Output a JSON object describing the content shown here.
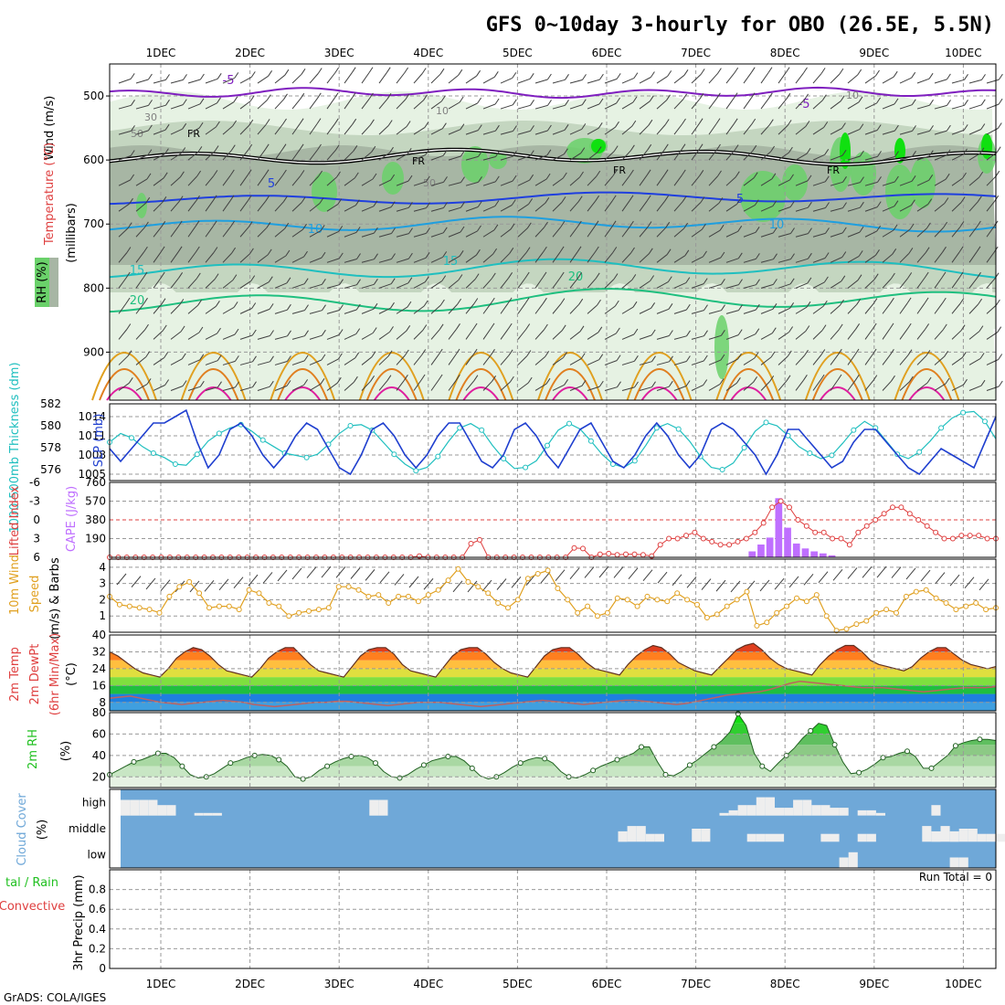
{
  "title": "GFS 0~10day 3-hourly for OBO (26.5E, 5.5N)",
  "footer": "GrADS: COLA/IGES",
  "run_total_label": "Run Total = 0",
  "days": [
    "1DEC",
    "2DEC",
    "3DEC",
    "4DEC",
    "5DEC",
    "6DEC",
    "7DEC",
    "8DEC",
    "9DEC",
    "10DEC"
  ],
  "colors": {
    "rh_light": "#e6f2e3",
    "rh_mid": "#c4d6c0",
    "rh_gray": "#a7b6a4",
    "rh_green": "#6ad16a",
    "rh_bright": "#10e010",
    "temp_purple": "#7f1fbf",
    "temp_blue": "#1f3fdf",
    "temp_sky": "#1f9fdf",
    "temp_cyan": "#1fbfbf",
    "temp_teal": "#1fbf7f",
    "temp_orange": "#e0a020",
    "temp_darkorange": "#e07f20",
    "temp_magenta": "#df1f9f",
    "slp_line": "#1f3fcf",
    "thick_line": "#1fbfbf",
    "lifted_index": "#df3f3f",
    "cape_bar": "#bf6fff",
    "wind_speed": "#e0a020",
    "barb": "#404040",
    "rh2m": "#20c020",
    "cloud_bg": "#6fa8d8",
    "cloud_fill": "#eeeeee",
    "grid": "#999999"
  },
  "cross_section": {
    "ylabel_wind": "Wind (m/s)",
    "ylabel_temp": "Temperature (°C)",
    "ylabel_pressure": "(millibars)",
    "rh_legend": "RH (%)",
    "y_ticks": [
      500,
      600,
      700,
      800,
      900
    ],
    "p_range": [
      450,
      975
    ],
    "temp_labels": [
      "-5",
      "5",
      "10",
      "15",
      "20",
      "FR"
    ],
    "rh_labels": [
      "30",
      "50",
      "10"
    ]
  },
  "chart_data": [
    {
      "type": "line",
      "title": "",
      "series": [
        {
          "name": "SLP (mb)",
          "axis": "right",
          "ylim": [
            1004,
            1016
          ],
          "y_ticks": [
            1005,
            1008,
            1011,
            1014
          ],
          "values": [
            1009,
            1007,
            1009,
            1011,
            1013,
            1013,
            1014,
            1015,
            1010,
            1006,
            1008,
            1012,
            1013,
            1011,
            1008,
            1006,
            1008,
            1011,
            1013,
            1012,
            1009,
            1006,
            1005,
            1008,
            1012,
            1013,
            1011,
            1008,
            1006,
            1008,
            1011,
            1013,
            1013,
            1010,
            1007,
            1006,
            1008,
            1012,
            1013,
            1011,
            1008,
            1006,
            1009,
            1012,
            1013,
            1010,
            1007,
            1006,
            1008,
            1011,
            1013,
            1011,
            1008,
            1006,
            1008,
            1012,
            1013,
            1012,
            1010,
            1008,
            1005,
            1008,
            1012,
            1012,
            1010,
            1008,
            1006,
            1007,
            1010,
            1012,
            1012,
            1010,
            1008,
            1006,
            1005,
            1007,
            1009,
            1008,
            1007,
            1006,
            1010,
            1014
          ]
        },
        {
          "name": "1000-500mb Thickness (dm)",
          "axis": "left",
          "ylim": [
            575,
            582
          ],
          "y_ticks": [
            576,
            578,
            580,
            582
          ],
          "values": [
            578.5,
            579.3,
            578.9,
            578.1,
            577.5,
            577.1,
            576.5,
            576.4,
            577.4,
            578.6,
            579.3,
            579.8,
            580.1,
            579.5,
            578.7,
            578.1,
            577.5,
            577.3,
            577.1,
            577.4,
            578.3,
            579.3,
            580.0,
            580.1,
            579.6,
            578.5,
            577.4,
            576.5,
            575.9,
            576.2,
            577.2,
            578.6,
            579.8,
            580.2,
            579.6,
            578.2,
            577.0,
            576.1,
            576.2,
            576.8,
            578.2,
            579.6,
            580.2,
            579.7,
            578.6,
            577.4,
            576.5,
            576.2,
            576.8,
            578.2,
            579.8,
            580.2,
            579.7,
            578.6,
            577.2,
            576.2,
            576.0,
            576.6,
            578.0,
            579.5,
            580.3,
            580.0,
            579.1,
            578.1,
            577.5,
            577.0,
            577.3,
            578.4,
            579.6,
            580.4,
            579.8,
            578.6,
            577.4,
            577.0,
            577.6,
            578.6,
            579.8,
            580.7,
            581.2,
            581.3,
            580.4,
            578.8
          ]
        }
      ]
    },
    {
      "type": "bar",
      "title": "",
      "ylabel_left": "Lifted Index",
      "ylabel_right": "CAPE (J/kg)",
      "li_ticks": [
        -6,
        -3,
        0,
        3,
        6
      ],
      "li_range": [
        -6,
        6
      ],
      "cape_ticks": [
        190,
        380,
        570,
        760
      ],
      "cape_range": [
        0,
        760
      ],
      "lifted_index": [
        6,
        6,
        6,
        6,
        6,
        6,
        6,
        6,
        6,
        6,
        6,
        6,
        6,
        6,
        6,
        6,
        6,
        6,
        6,
        6,
        6,
        6,
        6,
        6,
        6,
        6,
        6,
        6,
        6,
        6,
        6,
        6,
        6,
        6,
        6,
        6,
        5.8,
        6,
        6,
        6,
        6,
        6,
        3.8,
        3.2,
        6,
        6,
        6,
        6,
        6,
        6,
        6,
        6,
        6,
        6,
        4.5,
        4.6,
        6,
        5.5,
        5.4,
        5.6,
        5.5,
        5.5,
        5.6,
        5.8,
        4,
        3,
        3,
        2.5,
        2,
        3,
        3.5,
        4,
        4,
        3.5,
        3,
        2,
        0.5,
        -2,
        -3,
        -2,
        0,
        1,
        2,
        2,
        3,
        3,
        4,
        2,
        1,
        0,
        -1,
        -2,
        -2,
        -1,
        0,
        1,
        2,
        3,
        3,
        2.5,
        2.5,
        2.5,
        3,
        3
      ],
      "cape": [
        0,
        0,
        0,
        0,
        0,
        0,
        0,
        0,
        0,
        0,
        0,
        0,
        0,
        0,
        0,
        0,
        0,
        0,
        0,
        0,
        0,
        0,
        0,
        0,
        0,
        0,
        0,
        0,
        0,
        0,
        0,
        0,
        0,
        0,
        0,
        0,
        0,
        0,
        0,
        0,
        0,
        0,
        0,
        0,
        0,
        0,
        0,
        0,
        0,
        0,
        0,
        0,
        0,
        0,
        0,
        0,
        0,
        0,
        0,
        0,
        0,
        0,
        0,
        0,
        0,
        0,
        0,
        0,
        0,
        0,
        0,
        0,
        0,
        0,
        0,
        0,
        0,
        0,
        0,
        0,
        0,
        0
      ]
    },
    {
      "type": "line",
      "title": "",
      "ylabel": "10m Wind Speed (m/s) & Barbs",
      "y_ticks": [
        1,
        2,
        3,
        4
      ],
      "ylim": [
        0,
        4.5
      ],
      "values": [
        2.2,
        1.7,
        1.6,
        1.5,
        1.4,
        1.2,
        2.2,
        2.8,
        3.1,
        2.4,
        1.5,
        1.6,
        1.6,
        1.4,
        2.6,
        2.4,
        1.8,
        1.6,
        1.0,
        1.2,
        1.3,
        1.4,
        1.5,
        2.8,
        2.8,
        2.6,
        2.2,
        2.3,
        1.8,
        2.2,
        2.2,
        1.9,
        2.3,
        2.6,
        3.2,
        3.9,
        3.1,
        2.8,
        2.4,
        1.8,
        1.5,
        2.0,
        3.3,
        3.6,
        3.8,
        2.7,
        2.0,
        1.2,
        1.6,
        1.0,
        1.2,
        2.1,
        2.0,
        1.6,
        2.2,
        2.0,
        1.9,
        2.4,
        2.0,
        1.7,
        0.9,
        1.1,
        1.6,
        2.0,
        2.5,
        0.4,
        0.6,
        1.2,
        1.6,
        2.1,
        1.9,
        2.3,
        1.0,
        0.1,
        0.2,
        0.5,
        0.7,
        1.2,
        1.4,
        1.2,
        2.2,
        2.5,
        2.6,
        2.1,
        1.8,
        1.4,
        1.6,
        1.8,
        1.4,
        1.5
      ]
    },
    {
      "type": "area",
      "title": "",
      "ylabel": "2m Temp 2m DewPt (6hr Min/Max) (°C)",
      "y_ticks": [
        8,
        16,
        24,
        32,
        40
      ],
      "ylim": [
        4,
        40
      ],
      "temp": [
        32,
        30,
        27,
        24,
        22,
        21,
        20,
        24,
        29,
        32,
        34,
        33,
        30,
        26,
        23,
        22,
        21,
        20,
        24,
        29,
        32,
        34,
        34,
        30,
        26,
        23,
        22,
        21,
        20,
        25,
        30,
        33,
        34,
        34,
        31,
        26,
        23,
        22,
        21,
        20,
        25,
        30,
        33,
        34,
        34,
        31,
        27,
        24,
        22,
        21,
        20,
        25,
        30,
        33,
        34,
        34,
        31,
        27,
        24,
        23,
        22,
        21,
        26,
        30,
        33,
        35,
        34,
        31,
        27,
        25,
        23,
        22,
        21,
        25,
        29,
        33,
        35,
        36,
        33,
        29,
        26,
        24,
        23,
        22,
        21,
        26,
        30,
        33,
        35,
        35,
        32,
        28,
        26,
        25,
        24,
        23,
        25,
        29,
        32,
        34,
        34,
        31,
        28,
        26,
        25,
        24,
        25
      ],
      "dewpoint": [
        10,
        10.5,
        11,
        10,
        9,
        8,
        7.5,
        7,
        7.5,
        8,
        8.5,
        9,
        8.5,
        8,
        7,
        6.5,
        6,
        6.5,
        7,
        7.5,
        8,
        8,
        8.5,
        8.5,
        8,
        7.5,
        7,
        6.5,
        7,
        7.5,
        8,
        8,
        8,
        7.5,
        7,
        6.5,
        6,
        6.5,
        7,
        7.5,
        8,
        8.5,
        9,
        8.5,
        8,
        7.5,
        7,
        7.5,
        8,
        8.5,
        9,
        9,
        8.5,
        8,
        7.5,
        7,
        7.5,
        8.5,
        9.5,
        10.5,
        11.5,
        12,
        12.5,
        13,
        14,
        15.5,
        17,
        18,
        17.5,
        17,
        16.5,
        16,
        15.5,
        15,
        15,
        15,
        14.5,
        14,
        13.5,
        13,
        13.5,
        14,
        14.5,
        15,
        15,
        15,
        15.5
      ]
    },
    {
      "type": "area",
      "title": "",
      "ylabel": "2m RH (%)",
      "y_ticks": [
        20,
        40,
        60,
        80
      ],
      "ylim": [
        10,
        80
      ],
      "values": [
        22,
        26,
        30,
        34,
        36,
        39,
        42,
        42,
        38,
        30,
        22,
        19,
        20,
        23,
        28,
        33,
        35,
        38,
        40,
        41,
        40,
        36,
        30,
        20,
        18,
        20,
        26,
        30,
        34,
        37,
        39,
        40,
        38,
        33,
        25,
        20,
        19,
        22,
        27,
        31,
        35,
        37,
        39,
        39,
        35,
        28,
        21,
        18,
        20,
        24,
        29,
        33,
        36,
        38,
        37,
        33,
        25,
        20,
        19,
        22,
        26,
        30,
        33,
        36,
        39,
        42,
        48,
        48,
        34,
        22,
        21,
        25,
        31,
        36,
        42,
        48,
        54,
        62,
        79,
        68,
        42,
        30,
        25,
        33,
        40,
        47,
        56,
        63,
        70,
        68,
        50,
        34,
        23,
        24,
        27,
        32,
        38,
        39,
        42,
        44,
        39,
        28,
        28,
        34,
        40,
        49,
        52,
        54,
        55,
        55,
        54
      ]
    },
    {
      "type": "heatmap",
      "title": "",
      "ylabel": "Cloud Cover (%)",
      "levels": [
        "high",
        "middle",
        "low"
      ],
      "high": [
        60,
        60,
        60,
        60,
        55,
        55,
        0,
        0,
        0,
        0,
        10,
        10,
        10,
        0,
        0,
        0,
        0,
        0,
        0,
        0,
        0,
        0,
        0,
        0,
        10,
        20,
        60,
        60,
        0,
        0,
        0,
        0,
        0,
        0,
        0,
        0,
        0,
        0,
        0,
        0,
        10,
        10,
        0,
        0,
        0,
        0,
        0,
        0,
        0,
        0,
        0,
        0,
        0,
        0,
        0,
        0,
        0,
        0,
        0,
        0,
        0,
        0,
        0,
        0,
        0,
        10,
        20,
        40,
        40,
        70,
        70,
        30,
        30,
        60,
        60,
        40,
        40,
        30,
        30,
        0,
        20,
        20,
        10,
        0,
        0,
        0,
        0,
        0,
        0,
        0,
        0,
        0,
        0,
        0,
        0
      ],
      "middle": [
        0,
        0,
        0,
        0,
        0,
        0,
        0,
        0,
        0,
        0,
        0,
        0,
        0,
        0,
        0,
        0,
        0,
        0,
        0,
        0,
        0,
        0,
        0,
        0,
        0,
        0,
        0,
        0,
        0,
        0,
        0,
        0,
        0,
        0,
        0,
        0,
        0,
        0,
        0,
        0,
        0,
        0,
        0,
        0,
        0,
        0,
        0,
        0,
        0,
        0,
        0,
        0,
        0,
        0,
        0,
        0,
        0,
        0,
        0,
        0,
        0,
        0,
        0,
        0,
        0,
        0,
        0,
        0,
        0,
        0,
        0,
        0,
        0,
        0,
        0,
        0,
        0,
        0,
        0,
        0,
        0,
        0,
        0,
        0,
        0,
        0,
        0,
        0,
        0,
        0,
        0,
        0,
        0,
        0,
        0
      ],
      "low": [
        0,
        0,
        0,
        0,
        0,
        0,
        0,
        0,
        0,
        0,
        0,
        0,
        0,
        0,
        0,
        0,
        0,
        0,
        0,
        0,
        0,
        0,
        0,
        0,
        0,
        0,
        0,
        0,
        0,
        0,
        0,
        0,
        0,
        0,
        0,
        0,
        0,
        0,
        0,
        0,
        0,
        0,
        0,
        0,
        0,
        0,
        0,
        0,
        0,
        0,
        0,
        0,
        0,
        0,
        0,
        0,
        0,
        0,
        0,
        0,
        0,
        0,
        0,
        0,
        0,
        0,
        0,
        0,
        0,
        0,
        0,
        0,
        0,
        0,
        0,
        0,
        0,
        0,
        0,
        0,
        0,
        0,
        0,
        0,
        0,
        0,
        0,
        0,
        0,
        0,
        0,
        0,
        0,
        0,
        0
      ]
    },
    {
      "type": "bar",
      "title": "",
      "ylabel": "Total / Rain Convective 3hr Precip (mm)",
      "y_ticks": [
        0,
        0.2,
        0.4,
        0.6,
        0.8
      ],
      "ylim": [
        0,
        1.0
      ],
      "values": []
    }
  ]
}
